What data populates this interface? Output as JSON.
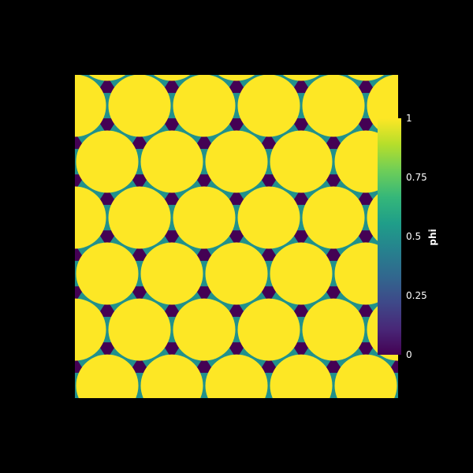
{
  "chart_data": {
    "type": "heatmap",
    "title": "",
    "variable": "phi",
    "colormap": "viridis",
    "value_range": [
      0,
      1
    ],
    "field_description": "hexagonal close packing of circular grains (phi=1) separated by thin grain boundaries; triangular pores (phi=0) at triple junctions",
    "grain_rows": 5,
    "grains_per_row": 5,
    "colorbar": {
      "title": "phi",
      "orientation": "vertical",
      "placement": "right",
      "ticks": [
        {
          "value": 1,
          "label": "1"
        },
        {
          "value": 0.75,
          "label": "0.75"
        },
        {
          "value": 0.5,
          "label": "0.5"
        },
        {
          "value": 0.25,
          "label": "0.25"
        },
        {
          "value": 0,
          "label": "0"
        }
      ]
    },
    "colors": {
      "grain": "#fde725",
      "pore": "#440154",
      "boundary": "#21918c",
      "background": "#000000"
    }
  }
}
